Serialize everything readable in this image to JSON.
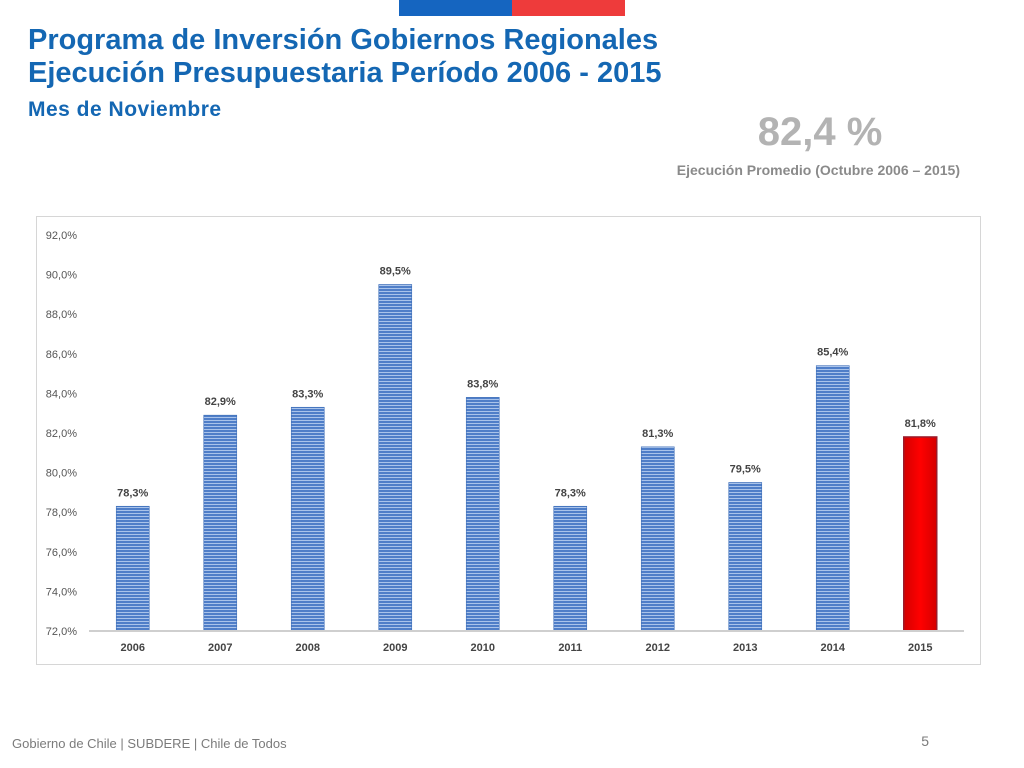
{
  "header": {
    "title_line1": "Programa de Inversión Gobiernos Regionales",
    "title_line2": "Ejecución Presupuestaria Período 2006 - 2015",
    "subtitle": "Mes de Noviembre"
  },
  "summary": {
    "value": "82,4 %",
    "label": "Ejecución Promedio (Octubre 2006 – 2015)"
  },
  "chart_data": {
    "type": "bar",
    "categories": [
      "2006",
      "2007",
      "2008",
      "2009",
      "2010",
      "2011",
      "2012",
      "2013",
      "2014",
      "2015"
    ],
    "values": [
      78.3,
      82.9,
      83.3,
      89.5,
      83.8,
      78.3,
      81.3,
      79.5,
      85.4,
      81.8
    ],
    "value_labels": [
      "78,3%",
      "82,9%",
      "83,3%",
      "89,5%",
      "83,8%",
      "78,3%",
      "81,3%",
      "79,5%",
      "85,4%",
      "81,8%"
    ],
    "ylim": [
      72,
      92
    ],
    "yticks": [
      72,
      74,
      76,
      78,
      80,
      82,
      84,
      86,
      88,
      90,
      92
    ],
    "ytick_labels": [
      "72,0%",
      "74,0%",
      "76,0%",
      "78,0%",
      "80,0%",
      "82,0%",
      "84,0%",
      "86,0%",
      "88,0%",
      "90,0%",
      "92,0%"
    ],
    "grid": false,
    "legend": "none",
    "colors": {
      "default": "#4f7ec8",
      "highlight": "#ff0000"
    },
    "highlight_index": 9
  },
  "footer": {
    "text": "Gobierno de Chile | SUBDERE | Chile de Todos",
    "page": "5"
  }
}
